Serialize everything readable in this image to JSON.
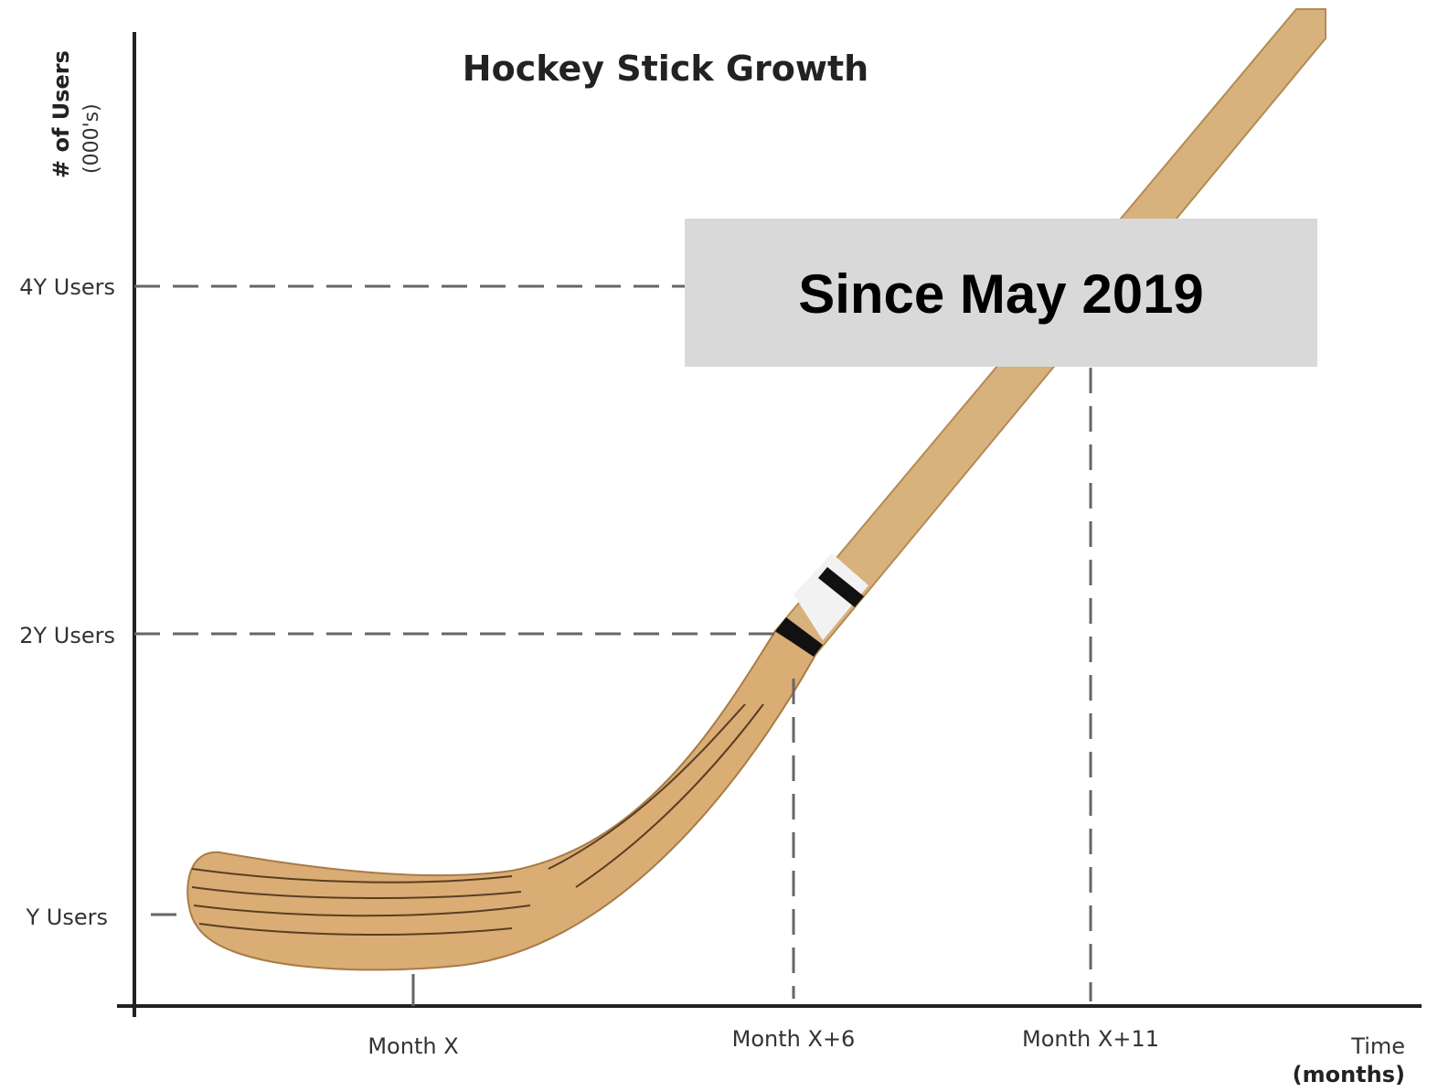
{
  "title": "Hockey Stick Growth",
  "y_axis": {
    "label": "# of Users",
    "unit": "(000's)",
    "ticks": [
      "4Y Users",
      "2Y Users",
      "Y Users"
    ]
  },
  "x_axis": {
    "label": "Time",
    "unit": "(months)",
    "ticks": [
      "Month X",
      "Month X+6",
      "Month X+11"
    ]
  },
  "overlay": "Since May 2019"
}
